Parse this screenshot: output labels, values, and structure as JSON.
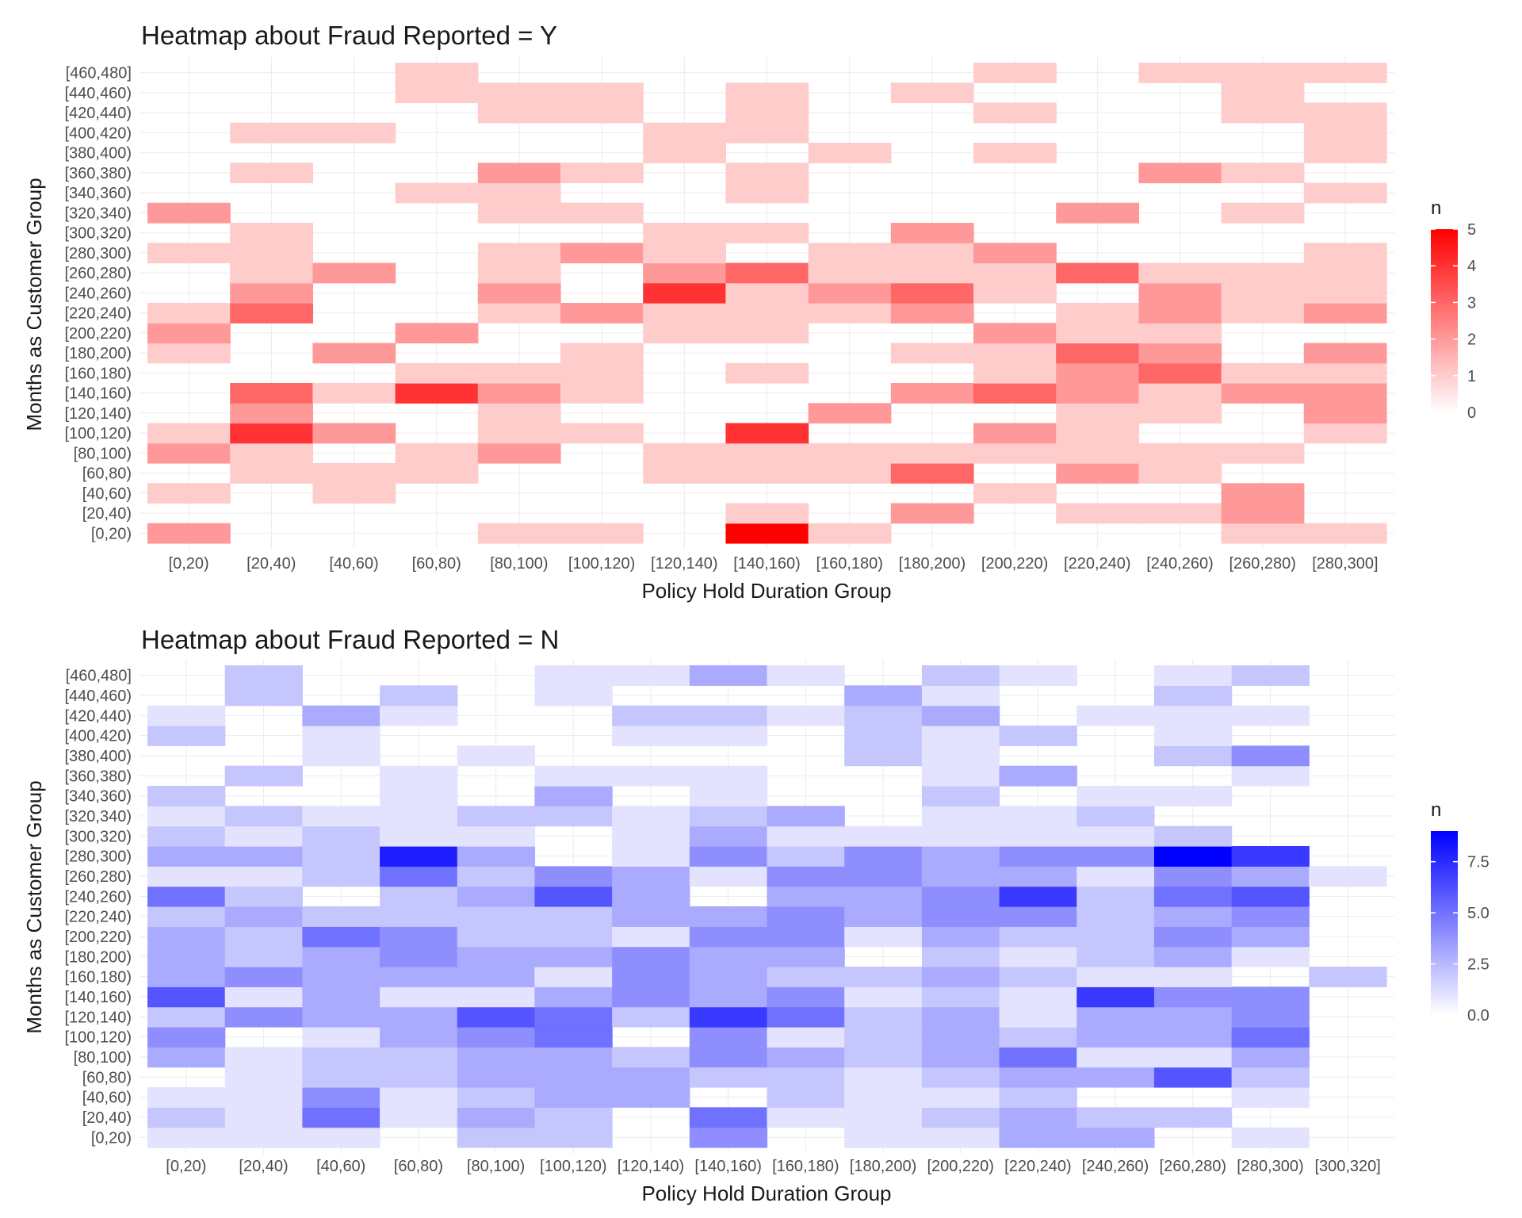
{
  "chart_data": [
    {
      "type": "heatmap",
      "title": "Heatmap about Fraud Reported = Y",
      "xlabel": "Policy Hold Duration Group",
      "ylabel": "Months as Customer Group",
      "x_categories": [
        "[0,20)",
        "[20,40)",
        "[40,60)",
        "[60,80)",
        "[80,100)",
        "[100,120)",
        "[120,140)",
        "[140,160)",
        "[160,180)",
        "[180,200)",
        "[200,220)",
        "[220,240)",
        "[240,260)",
        "[260,280)",
        "[280,300]"
      ],
      "y_categories": [
        "[0,20)",
        "[20,40)",
        "[40,60)",
        "[60,80)",
        "[80,100)",
        "[100,120)",
        "[120,140)",
        "[140,160)",
        "[160,180)",
        "[180,200)",
        "[200,220)",
        "[220,240)",
        "[240,260)",
        "[260,280)",
        "[280,300)",
        "[300,320)",
        "[320,340)",
        "[340,360)",
        "[360,380)",
        "[380,400)",
        "[400,420)",
        "[420,440)",
        "[440,460)",
        "[460,480]"
      ],
      "legend": {
        "title": "n",
        "min": 0,
        "max": 5,
        "ticks": [
          0,
          1,
          2,
          3,
          4,
          5
        ],
        "tick_labels": [
          "0",
          "1",
          "2",
          "3",
          "4",
          "5"
        ],
        "low_color": "#ffffff",
        "high_color": "#ff0000",
        "placement": "right"
      },
      "values": [
        [
          2,
          0,
          0,
          0,
          1,
          1,
          0,
          5,
          1,
          0,
          0,
          0,
          0,
          1,
          1
        ],
        [
          0,
          0,
          0,
          0,
          0,
          0,
          0,
          1,
          0,
          2,
          0,
          1,
          1,
          2,
          0
        ],
        [
          1,
          0,
          1,
          0,
          0,
          0,
          0,
          0,
          0,
          0,
          1,
          0,
          0,
          2,
          0
        ],
        [
          0,
          1,
          1,
          1,
          0,
          0,
          1,
          1,
          1,
          3,
          0,
          2,
          1,
          0,
          0
        ],
        [
          2,
          1,
          0,
          1,
          2,
          0,
          1,
          1,
          1,
          1,
          1,
          1,
          1,
          1,
          0
        ],
        [
          1,
          4,
          2,
          0,
          1,
          1,
          0,
          4,
          0,
          0,
          2,
          1,
          0,
          0,
          1
        ],
        [
          0,
          2,
          0,
          0,
          1,
          0,
          0,
          0,
          2,
          0,
          0,
          1,
          1,
          0,
          2
        ],
        [
          0,
          3,
          1,
          4,
          2,
          1,
          0,
          0,
          0,
          2,
          3,
          2,
          1,
          2,
          2
        ],
        [
          0,
          0,
          0,
          1,
          1,
          1,
          0,
          1,
          0,
          0,
          1,
          2,
          3,
          1,
          1
        ],
        [
          1,
          0,
          2,
          0,
          0,
          1,
          0,
          0,
          0,
          1,
          1,
          3,
          2,
          0,
          2
        ],
        [
          2,
          0,
          0,
          2,
          0,
          0,
          1,
          1,
          0,
          0,
          2,
          1,
          1,
          0,
          0
        ],
        [
          1,
          3,
          0,
          0,
          1,
          2,
          1,
          1,
          1,
          2,
          0,
          1,
          2,
          1,
          2
        ],
        [
          0,
          2,
          0,
          0,
          2,
          0,
          4,
          1,
          2,
          3,
          1,
          0,
          2,
          1,
          1
        ],
        [
          0,
          1,
          2,
          0,
          1,
          0,
          2,
          3,
          1,
          1,
          1,
          3,
          1,
          1,
          1
        ],
        [
          1,
          1,
          0,
          0,
          1,
          2,
          1,
          0,
          1,
          1,
          2,
          0,
          0,
          0,
          1
        ],
        [
          0,
          1,
          0,
          0,
          0,
          0,
          1,
          1,
          0,
          2,
          0,
          0,
          0,
          0,
          0
        ],
        [
          2,
          0,
          0,
          0,
          1,
          1,
          0,
          0,
          0,
          0,
          0,
          2,
          0,
          1,
          0
        ],
        [
          0,
          0,
          0,
          1,
          1,
          0,
          0,
          1,
          0,
          0,
          0,
          0,
          0,
          0,
          1
        ],
        [
          0,
          1,
          0,
          0,
          2,
          1,
          0,
          1,
          0,
          0,
          0,
          0,
          2,
          1,
          0
        ],
        [
          0,
          0,
          0,
          0,
          0,
          0,
          1,
          0,
          1,
          0,
          1,
          0,
          0,
          0,
          1
        ],
        [
          0,
          1,
          1,
          0,
          0,
          0,
          1,
          1,
          0,
          0,
          0,
          0,
          0,
          0,
          1
        ],
        [
          0,
          0,
          0,
          0,
          1,
          1,
          0,
          1,
          0,
          0,
          1,
          0,
          0,
          1,
          1
        ],
        [
          0,
          0,
          0,
          1,
          1,
          1,
          0,
          1,
          0,
          1,
          0,
          0,
          0,
          1,
          0
        ],
        [
          0,
          0,
          0,
          1,
          0,
          0,
          0,
          0,
          0,
          0,
          1,
          0,
          1,
          1,
          1
        ]
      ]
    },
    {
      "type": "heatmap",
      "title": "Heatmap about Fraud Reported = N",
      "xlabel": "Policy Hold Duration Group",
      "ylabel": "Months as Customer Group",
      "x_categories": [
        "[0,20)",
        "[20,40)",
        "[40,60)",
        "[60,80)",
        "[80,100)",
        "[100,120)",
        "[120,140)",
        "[140,160)",
        "[160,180)",
        "[180,200)",
        "[200,220)",
        "[220,240)",
        "[240,260)",
        "[260,280)",
        "[280,300)",
        "[300,320]"
      ],
      "y_categories": [
        "[0,20)",
        "[20,40)",
        "[40,60)",
        "[60,80)",
        "[80,100)",
        "[100,120)",
        "[120,140)",
        "[140,160)",
        "[160,180)",
        "[180,200)",
        "[200,220)",
        "[220,240)",
        "[240,260)",
        "[260,280)",
        "[280,300)",
        "[300,320)",
        "[320,340)",
        "[340,360)",
        "[360,380)",
        "[380,400)",
        "[400,420)",
        "[420,440)",
        "[440,460)",
        "[460,480]"
      ],
      "legend": {
        "title": "n",
        "min": 0,
        "max": 9,
        "ticks": [
          0,
          2.5,
          5,
          7.5
        ],
        "tick_labels": [
          "0.0",
          "2.5",
          "5.0",
          "7.5"
        ],
        "low_color": "#ffffff",
        "high_color": "#0000ff",
        "placement": "right"
      },
      "values": [
        [
          1,
          1,
          1,
          0,
          2,
          2,
          0,
          4,
          0,
          1,
          1,
          3,
          3,
          0,
          1,
          0
        ],
        [
          2,
          1,
          5,
          1,
          3,
          2,
          0,
          5,
          1,
          1,
          2,
          3,
          2,
          2,
          0,
          0
        ],
        [
          1,
          1,
          4,
          1,
          2,
          3,
          3,
          0,
          2,
          1,
          1,
          2,
          0,
          0,
          1,
          0
        ],
        [
          0,
          1,
          2,
          2,
          3,
          3,
          3,
          2,
          2,
          1,
          2,
          3,
          3,
          6,
          2,
          0
        ],
        [
          3,
          1,
          2,
          2,
          3,
          3,
          2,
          4,
          3,
          2,
          3,
          5,
          1,
          1,
          3,
          0
        ],
        [
          4,
          0,
          1,
          3,
          4,
          5,
          0,
          4,
          1,
          2,
          3,
          2,
          3,
          3,
          5,
          0
        ],
        [
          2,
          4,
          3,
          3,
          6,
          5,
          2,
          7,
          5,
          2,
          3,
          1,
          3,
          3,
          4,
          0
        ],
        [
          6,
          1,
          3,
          1,
          1,
          3,
          4,
          3,
          4,
          1,
          2,
          1,
          7,
          4,
          4,
          0
        ],
        [
          3,
          4,
          3,
          3,
          3,
          1,
          4,
          3,
          2,
          2,
          3,
          2,
          1,
          1,
          0,
          2
        ],
        [
          3,
          2,
          3,
          4,
          3,
          3,
          4,
          3,
          3,
          0,
          2,
          1,
          2,
          3,
          1,
          0
        ],
        [
          3,
          2,
          5,
          4,
          2,
          2,
          1,
          4,
          4,
          1,
          3,
          2,
          2,
          4,
          3,
          0
        ],
        [
          2,
          3,
          2,
          2,
          2,
          2,
          3,
          3,
          4,
          3,
          4,
          4,
          2,
          3,
          4,
          0
        ],
        [
          5,
          2,
          0,
          2,
          3,
          6,
          3,
          0,
          3,
          3,
          4,
          7,
          2,
          5,
          6,
          0
        ],
        [
          1,
          1,
          2,
          5,
          2,
          4,
          3,
          1,
          4,
          4,
          3,
          3,
          1,
          4,
          3,
          1
        ],
        [
          3,
          3,
          2,
          8,
          3,
          0,
          1,
          4,
          2,
          4,
          3,
          4,
          4,
          9,
          7,
          0
        ],
        [
          2,
          1,
          2,
          1,
          1,
          0,
          1,
          3,
          1,
          1,
          1,
          1,
          1,
          2,
          0,
          0
        ],
        [
          1,
          2,
          1,
          1,
          2,
          2,
          1,
          2,
          3,
          0,
          1,
          1,
          2,
          0,
          0,
          0
        ],
        [
          2,
          0,
          0,
          1,
          0,
          3,
          0,
          1,
          0,
          0,
          2,
          0,
          1,
          1,
          0,
          0
        ],
        [
          0,
          2,
          0,
          1,
          0,
          1,
          1,
          1,
          0,
          0,
          1,
          3,
          0,
          0,
          1,
          0
        ],
        [
          0,
          0,
          1,
          0,
          1,
          0,
          0,
          0,
          0,
          2,
          1,
          0,
          0,
          2,
          4,
          0
        ],
        [
          2,
          0,
          1,
          0,
          0,
          0,
          1,
          1,
          0,
          2,
          1,
          2,
          0,
          1,
          0,
          0
        ],
        [
          1,
          0,
          3,
          1,
          0,
          0,
          2,
          2,
          1,
          2,
          3,
          0,
          1,
          1,
          1,
          0
        ],
        [
          0,
          2,
          0,
          2,
          0,
          1,
          0,
          0,
          0,
          3,
          1,
          0,
          0,
          2,
          0,
          0
        ],
        [
          0,
          2,
          0,
          0,
          0,
          1,
          1,
          3,
          1,
          0,
          2,
          1,
          0,
          1,
          2,
          0
        ]
      ]
    }
  ]
}
